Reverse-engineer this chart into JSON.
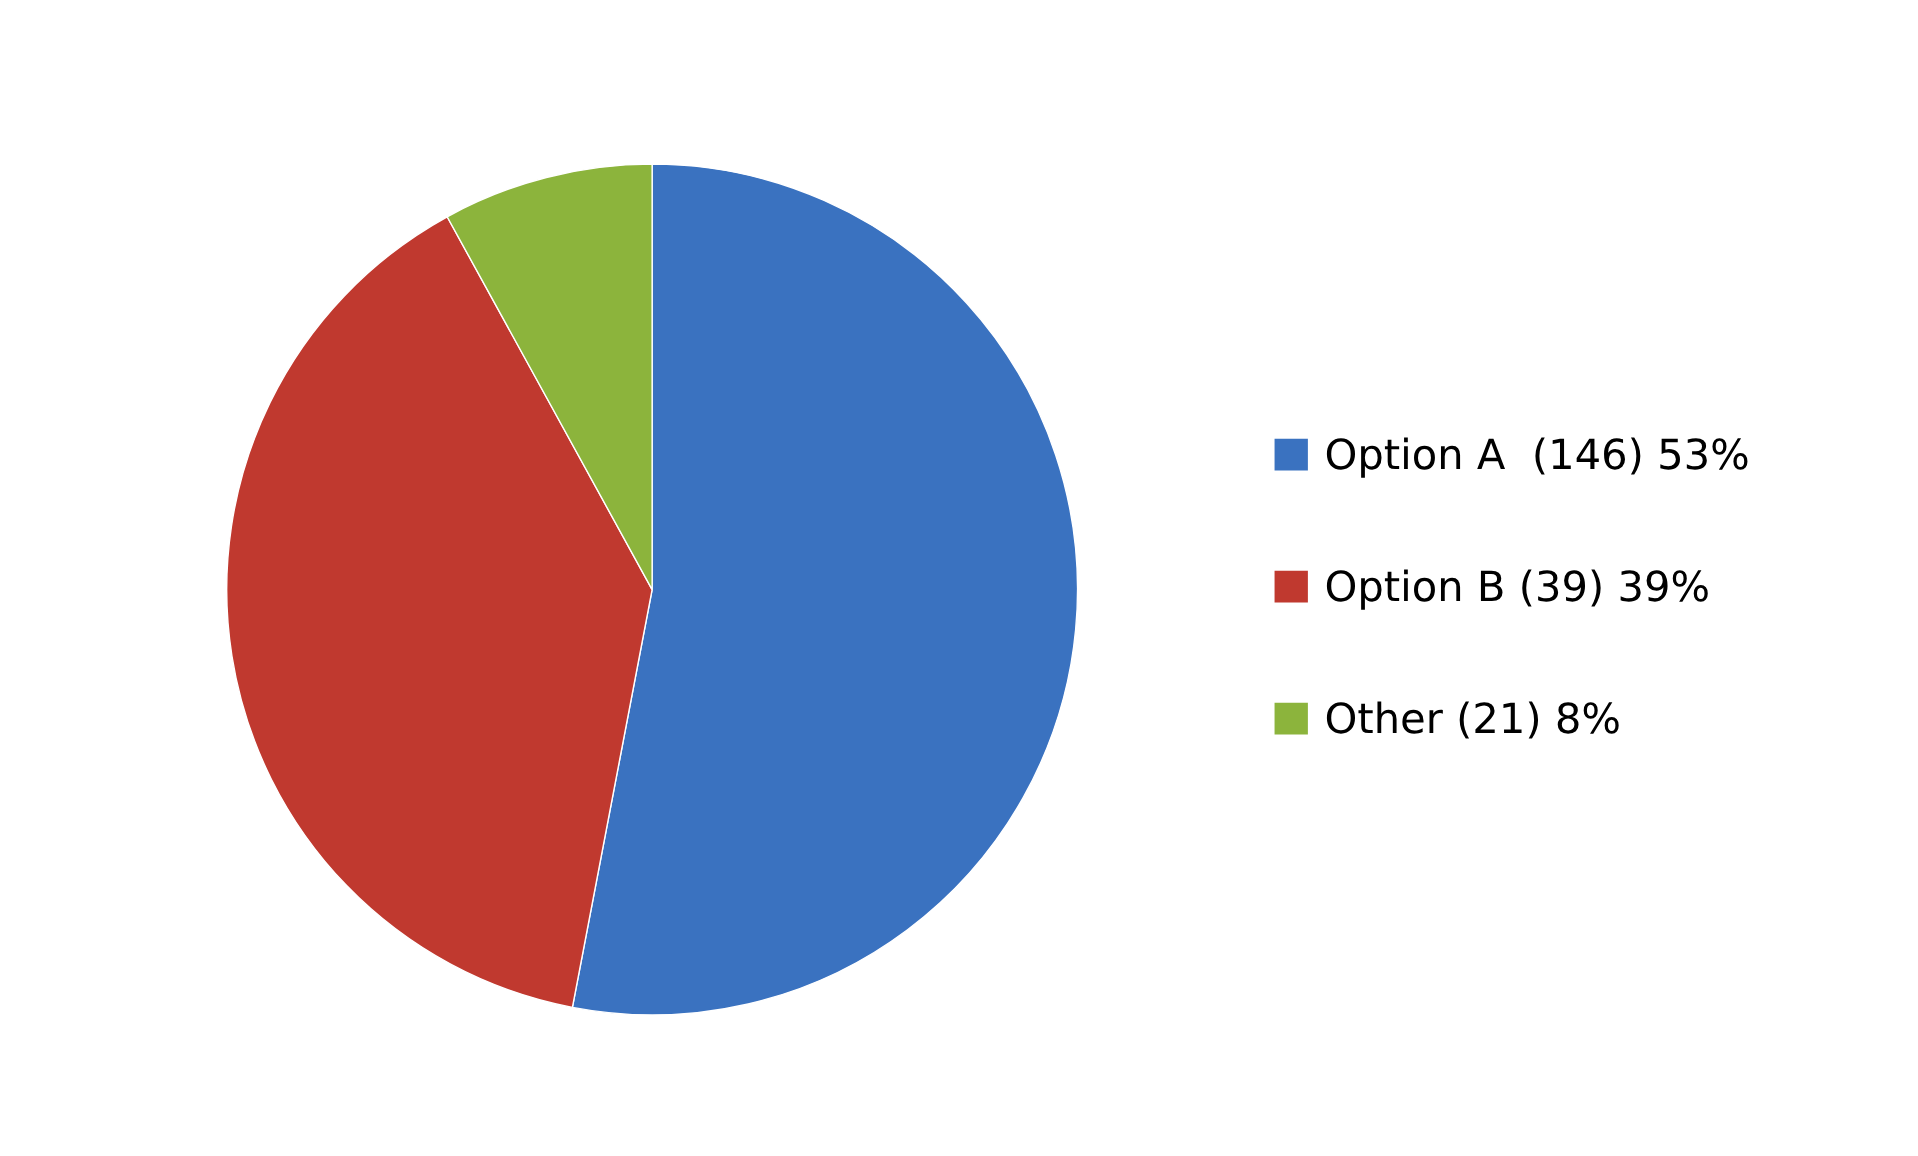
{
  "chart_data": {
    "type": "pie",
    "categories": [
      "Option A  (146) 53%",
      "Option B (39) 39%",
      "Other (21) 8%"
    ],
    "values": [
      53,
      39,
      8
    ],
    "colors": [
      "#3a72c0",
      "#c0392f",
      "#8cb43c"
    ],
    "legend": "right"
  }
}
